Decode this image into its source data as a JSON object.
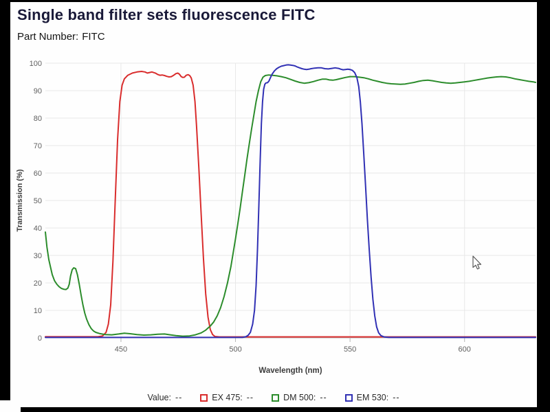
{
  "page": {
    "title": "Single band filter sets fluorescence FITC",
    "part_number_label": "Part Number:",
    "part_number_value": "FITC"
  },
  "chart_data": {
    "type": "line",
    "title": "Single band filter sets fluorescence FITC",
    "xlabel": "Wavelength (nm)",
    "ylabel": "Transmission (%)",
    "xlim": [
      417,
      631
    ],
    "ylim": [
      0,
      100
    ],
    "x_ticks": [
      450,
      500,
      550,
      600
    ],
    "y_ticks": [
      0,
      10,
      20,
      30,
      40,
      50,
      60,
      70,
      80,
      90,
      100
    ],
    "grid": true,
    "legend_position": "bottom",
    "colors": {
      "grid": "#e8e8e8",
      "axis": "#b5b5b5",
      "tick_text": "#5f5f5f"
    },
    "series": [
      {
        "name": "EX 475",
        "color": "#d92c2c",
        "points": [
          [
            417,
            0.4
          ],
          [
            440,
            0.4
          ],
          [
            442,
            0.7
          ],
          [
            443.5,
            2
          ],
          [
            444.5,
            5
          ],
          [
            445.5,
            12
          ],
          [
            446.5,
            28
          ],
          [
            447.5,
            50
          ],
          [
            448.5,
            72
          ],
          [
            449.5,
            86
          ],
          [
            450.5,
            92
          ],
          [
            451.5,
            94.3
          ],
          [
            453,
            95.6
          ],
          [
            455,
            96.4
          ],
          [
            457,
            96.8
          ],
          [
            459,
            97
          ],
          [
            460.5,
            96.8
          ],
          [
            461.5,
            96.4
          ],
          [
            462.5,
            96.6
          ],
          [
            463.5,
            96.8
          ],
          [
            465,
            96.4
          ],
          [
            466,
            95.9
          ],
          [
            467,
            95.6
          ],
          [
            468,
            95.7
          ],
          [
            469,
            95.5
          ],
          [
            470,
            95.2
          ],
          [
            471,
            95
          ],
          [
            472,
            95.1
          ],
          [
            473,
            95.6
          ],
          [
            474,
            96.2
          ],
          [
            474.8,
            96.4
          ],
          [
            475.5,
            96
          ],
          [
            476.3,
            95.1
          ],
          [
            477,
            94.8
          ],
          [
            477.7,
            94.9
          ],
          [
            478.5,
            95.6
          ],
          [
            479.3,
            95.8
          ],
          [
            480,
            95.5
          ],
          [
            480.7,
            94.6
          ],
          [
            481.5,
            92
          ],
          [
            482.3,
            86
          ],
          [
            483,
            77
          ],
          [
            484,
            62
          ],
          [
            485,
            45
          ],
          [
            486,
            29
          ],
          [
            487,
            16
          ],
          [
            488,
            7.5
          ],
          [
            489,
            3
          ],
          [
            490,
            1.2
          ],
          [
            491,
            0.5
          ],
          [
            493,
            0.35
          ],
          [
            631,
            0.35
          ]
        ]
      },
      {
        "name": "DM 500",
        "color": "#2b8c2b",
        "points": [
          [
            417,
            38.5
          ],
          [
            417.7,
            33
          ],
          [
            418.5,
            28.5
          ],
          [
            419.3,
            25.5
          ],
          [
            420,
            23
          ],
          [
            421,
            20.8
          ],
          [
            422,
            19.5
          ],
          [
            423,
            18.6
          ],
          [
            424,
            18
          ],
          [
            425,
            17.7
          ],
          [
            426,
            17.6
          ],
          [
            426.8,
            18.1
          ],
          [
            427.4,
            19.5
          ],
          [
            428,
            22.5
          ],
          [
            428.7,
            24.8
          ],
          [
            429.4,
            25.5
          ],
          [
            430.2,
            25.2
          ],
          [
            431,
            23
          ],
          [
            431.8,
            19.5
          ],
          [
            432.6,
            15.5
          ],
          [
            433.4,
            12
          ],
          [
            434.2,
            9
          ],
          [
            435,
            6.8
          ],
          [
            436,
            4.8
          ],
          [
            437,
            3.4
          ],
          [
            438,
            2.5
          ],
          [
            439,
            2
          ],
          [
            440.5,
            1.6
          ],
          [
            443,
            1.2
          ],
          [
            446,
            1.1
          ],
          [
            449,
            1.4
          ],
          [
            451.5,
            1.7
          ],
          [
            454,
            1.5
          ],
          [
            457,
            1.2
          ],
          [
            460,
            1
          ],
          [
            463,
            1.1
          ],
          [
            466,
            1.3
          ],
          [
            469,
            1.4
          ],
          [
            471.5,
            1.1
          ],
          [
            474,
            0.8
          ],
          [
            477,
            0.6
          ],
          [
            480,
            0.7
          ],
          [
            482.5,
            1.1
          ],
          [
            485,
            1.8
          ],
          [
            487,
            2.8
          ],
          [
            489,
            4.3
          ],
          [
            490.5,
            5.8
          ],
          [
            492,
            8
          ],
          [
            493.5,
            11
          ],
          [
            495,
            15
          ],
          [
            496.5,
            20
          ],
          [
            498,
            26
          ],
          [
            499,
            31
          ],
          [
            500,
            36
          ],
          [
            501,
            41.5
          ],
          [
            502,
            47
          ],
          [
            503,
            53
          ],
          [
            504,
            59
          ],
          [
            505,
            65
          ],
          [
            506,
            70.5
          ],
          [
            507,
            76
          ],
          [
            508,
            81
          ],
          [
            509,
            86
          ],
          [
            510,
            90
          ],
          [
            511,
            93.2
          ],
          [
            512,
            94.9
          ],
          [
            513,
            95.5
          ],
          [
            514.5,
            95.7
          ],
          [
            516,
            95.6
          ],
          [
            518,
            95.4
          ],
          [
            520,
            95.1
          ],
          [
            522,
            94.7
          ],
          [
            524,
            94.1
          ],
          [
            526,
            93.5
          ],
          [
            528,
            93
          ],
          [
            530,
            92.7
          ],
          [
            532,
            92.9
          ],
          [
            534,
            93.3
          ],
          [
            536,
            93.8
          ],
          [
            538,
            94.2
          ],
          [
            539.5,
            94.2
          ],
          [
            541,
            93.9
          ],
          [
            542.5,
            93.8
          ],
          [
            544,
            94
          ],
          [
            546,
            94.4
          ],
          [
            548,
            94.8
          ],
          [
            550,
            95.1
          ],
          [
            552,
            95.1
          ],
          [
            554,
            94.9
          ],
          [
            556,
            94.7
          ],
          [
            558,
            94.3
          ],
          [
            560,
            93.8
          ],
          [
            562,
            93.4
          ],
          [
            564,
            93
          ],
          [
            566,
            92.7
          ],
          [
            568,
            92.5
          ],
          [
            570,
            92.4
          ],
          [
            572,
            92.3
          ],
          [
            574,
            92.4
          ],
          [
            576,
            92.7
          ],
          [
            578,
            93
          ],
          [
            580,
            93.4
          ],
          [
            582,
            93.7
          ],
          [
            584,
            93.8
          ],
          [
            586,
            93.6
          ],
          [
            588,
            93.3
          ],
          [
            590,
            93
          ],
          [
            592,
            92.8
          ],
          [
            594,
            92.7
          ],
          [
            596,
            92.8
          ],
          [
            598,
            93
          ],
          [
            600,
            93.2
          ],
          [
            602,
            93.4
          ],
          [
            604,
            93.7
          ],
          [
            606,
            94
          ],
          [
            608,
            94.3
          ],
          [
            610,
            94.6
          ],
          [
            612,
            94.8
          ],
          [
            614,
            95
          ],
          [
            616,
            95.1
          ],
          [
            618,
            95
          ],
          [
            620,
            94.7
          ],
          [
            622,
            94.3
          ],
          [
            624,
            94
          ],
          [
            626,
            93.7
          ],
          [
            628,
            93.4
          ],
          [
            630,
            93.2
          ],
          [
            631,
            93
          ]
        ]
      },
      {
        "name": "EM 530",
        "color": "#3030b4",
        "points": [
          [
            417,
            0.15
          ],
          [
            503,
            0.15
          ],
          [
            504.5,
            0.4
          ],
          [
            505.5,
            0.9
          ],
          [
            506.5,
            2
          ],
          [
            507.5,
            5
          ],
          [
            508.3,
            10
          ],
          [
            509,
            19
          ],
          [
            509.6,
            32
          ],
          [
            510.2,
            48
          ],
          [
            510.8,
            65
          ],
          [
            511.3,
            78
          ],
          [
            511.8,
            86
          ],
          [
            512.3,
            90.5
          ],
          [
            512.8,
            92.3
          ],
          [
            513.3,
            92.8
          ],
          [
            514,
            92.9
          ],
          [
            514.6,
            93.5
          ],
          [
            515.3,
            94.8
          ],
          [
            516,
            96
          ],
          [
            517,
            97.2
          ],
          [
            518,
            98
          ],
          [
            519,
            98.5
          ],
          [
            520,
            98.9
          ],
          [
            521,
            99.1
          ],
          [
            522,
            99.3
          ],
          [
            523,
            99.4
          ],
          [
            524,
            99.3
          ],
          [
            525,
            99.2
          ],
          [
            526,
            99
          ],
          [
            527,
            98.6
          ],
          [
            528,
            98.3
          ],
          [
            529,
            98
          ],
          [
            530,
            97.8
          ],
          [
            531,
            97.7
          ],
          [
            532,
            97.8
          ],
          [
            533,
            98
          ],
          [
            534.5,
            98.2
          ],
          [
            536,
            98.3
          ],
          [
            537.5,
            98.3
          ],
          [
            539,
            98
          ],
          [
            540.5,
            97.9
          ],
          [
            542,
            98.1
          ],
          [
            543.5,
            98.3
          ],
          [
            545,
            98.1
          ],
          [
            546,
            97.8
          ],
          [
            547,
            97.6
          ],
          [
            548,
            97.7
          ],
          [
            549,
            97.8
          ],
          [
            550,
            97.7
          ],
          [
            551,
            97.4
          ],
          [
            552,
            96.6
          ],
          [
            553,
            94.8
          ],
          [
            553.8,
            91.5
          ],
          [
            554.5,
            86
          ],
          [
            555.2,
            78
          ],
          [
            556,
            67
          ],
          [
            556.8,
            55
          ],
          [
            557.6,
            43
          ],
          [
            558.4,
            32
          ],
          [
            559.2,
            22
          ],
          [
            560,
            14
          ],
          [
            560.8,
            8
          ],
          [
            561.6,
            4
          ],
          [
            562.5,
            1.8
          ],
          [
            563.5,
            0.8
          ],
          [
            565,
            0.3
          ],
          [
            567,
            0.15
          ],
          [
            631,
            0.15
          ]
        ]
      }
    ]
  },
  "legend": {
    "value_label": "Value:",
    "value": "--",
    "items": [
      {
        "label": "EX 475:",
        "value": "--",
        "color": "#d92c2c"
      },
      {
        "label": "DM 500:",
        "value": "--",
        "color": "#2b8c2b"
      },
      {
        "label": "EM 530:",
        "value": "--",
        "color": "#3030b4"
      }
    ]
  }
}
